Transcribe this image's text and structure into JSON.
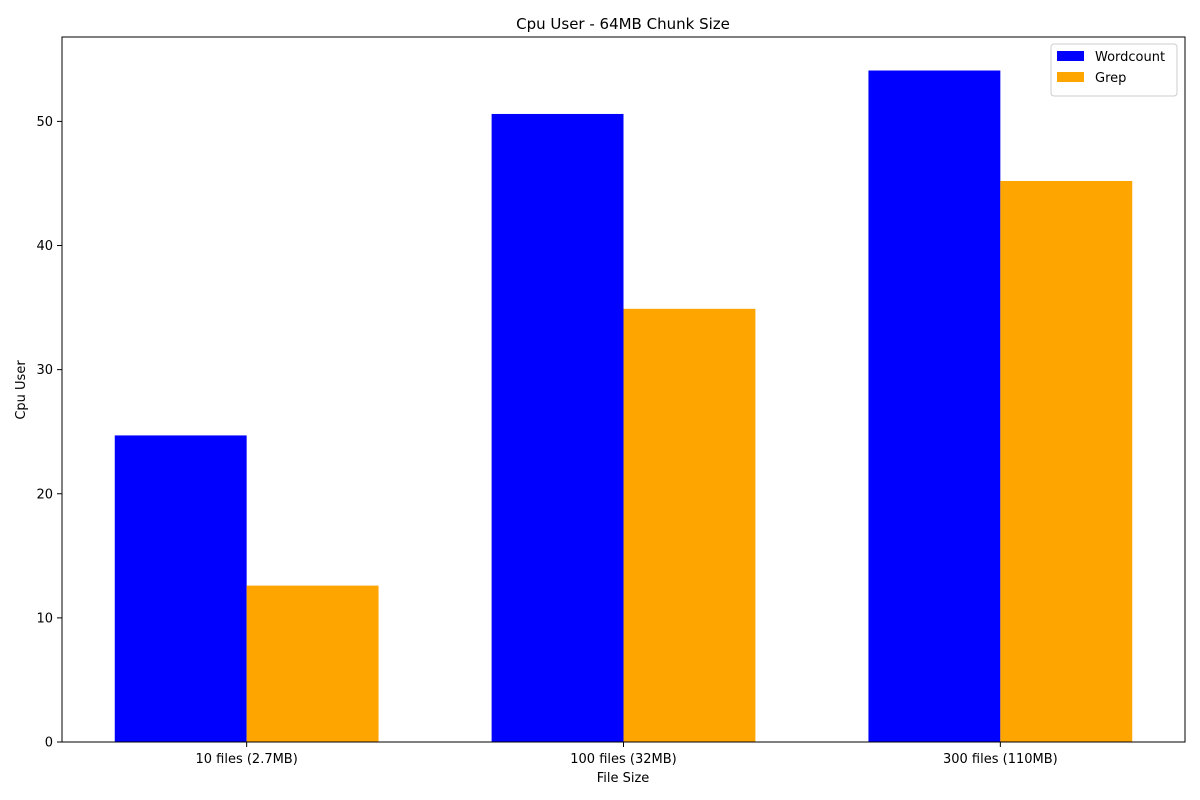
{
  "chart_data": {
    "type": "bar",
    "title": "Cpu User - 64MB Chunk Size",
    "xlabel": "File Size",
    "ylabel": "Cpu User",
    "categories": [
      "10 files (2.7MB)",
      "100 files (32MB)",
      "300 files (110MB)"
    ],
    "series": [
      {
        "name": "Wordcount",
        "color": "#0000ff",
        "values": [
          24.7,
          50.6,
          54.1
        ]
      },
      {
        "name": "Grep",
        "color": "#ffa500",
        "values": [
          12.6,
          34.9,
          45.2
        ]
      }
    ],
    "ylim": [
      0,
      56.8
    ],
    "yticks": [
      "0",
      "10",
      "20",
      "30",
      "40",
      "50"
    ],
    "grid": false,
    "legend_position": "top-right"
  }
}
